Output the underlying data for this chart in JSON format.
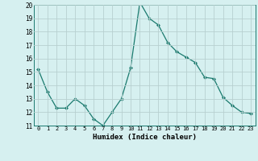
{
  "x": [
    0,
    1,
    2,
    3,
    4,
    5,
    6,
    7,
    8,
    9,
    10,
    11,
    12,
    13,
    14,
    15,
    16,
    17,
    18,
    19,
    20,
    21,
    22,
    23
  ],
  "y": [
    15.2,
    13.5,
    12.3,
    12.3,
    13.0,
    12.5,
    11.5,
    11.0,
    12.0,
    13.0,
    15.3,
    20.2,
    19.0,
    18.5,
    17.2,
    16.5,
    16.1,
    15.7,
    14.6,
    14.5,
    13.1,
    12.5,
    12.0,
    11.9
  ],
  "ylim": [
    11,
    20
  ],
  "xlim": [
    -0.5,
    23.5
  ],
  "yticks": [
    11,
    12,
    13,
    14,
    15,
    16,
    17,
    18,
    19,
    20
  ],
  "xticks": [
    0,
    1,
    2,
    3,
    4,
    5,
    6,
    7,
    8,
    9,
    10,
    11,
    12,
    13,
    14,
    15,
    16,
    17,
    18,
    19,
    20,
    21,
    22,
    23
  ],
  "xlabel": "Humidex (Indice chaleur)",
  "line_color": "#1a7a6e",
  "marker": "D",
  "marker_size": 2.0,
  "bg_color": "#d6f0f0",
  "grid_color": "#b8d0d0"
}
